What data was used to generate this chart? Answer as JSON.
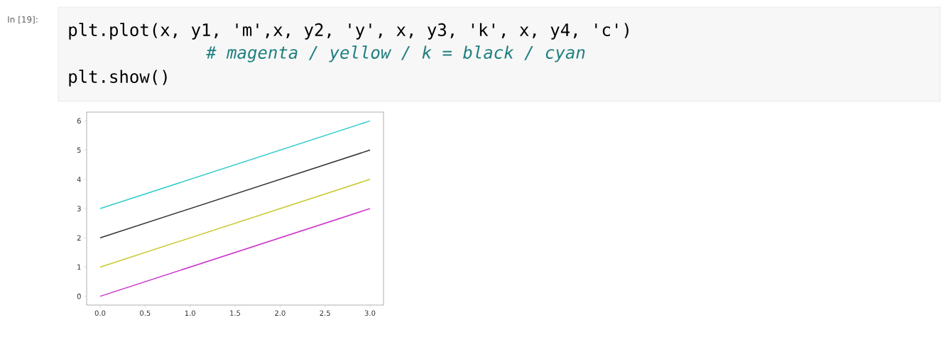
{
  "chart_data": {
    "type": "line",
    "annotations": [
      "In [19]:",
      "plt.plot(x, y1, 'm',x, y2, 'y', x, y3, 'k', x, y4, 'c')",
      "# magenta / yellow / k  = black / cyan",
      "plt.show()"
    ],
    "x": [
      0,
      3
    ],
    "series": [
      {
        "color": "#cc33cc",
        "values": [
          0,
          3
        ]
      },
      {
        "color": "#c8c82e",
        "values": [
          1,
          4
        ]
      },
      {
        "color": "#333333",
        "values": [
          2,
          5
        ]
      },
      {
        "color": "#33cccc",
        "values": [
          3,
          6
        ]
      }
    ],
    "xlim": [
      -0.15,
      3.15
    ],
    "ylim": [
      -0.3,
      6.3
    ],
    "xticks": [
      {
        "value": 0,
        "label": "0.0"
      },
      {
        "value": 0.5,
        "label": "0.5"
      },
      {
        "value": 1,
        "label": "1.0"
      },
      {
        "value": 1.5,
        "label": "1.5"
      },
      {
        "value": 2,
        "label": "2.0"
      },
      {
        "value": 2.5,
        "label": "2.5"
      },
      {
        "value": 3,
        "label": "3.0"
      }
    ],
    "yticks": [
      0,
      1,
      2,
      3,
      4,
      5,
      6
    ],
    "grid": false,
    "marker": "none",
    "line_style": "solid"
  }
}
